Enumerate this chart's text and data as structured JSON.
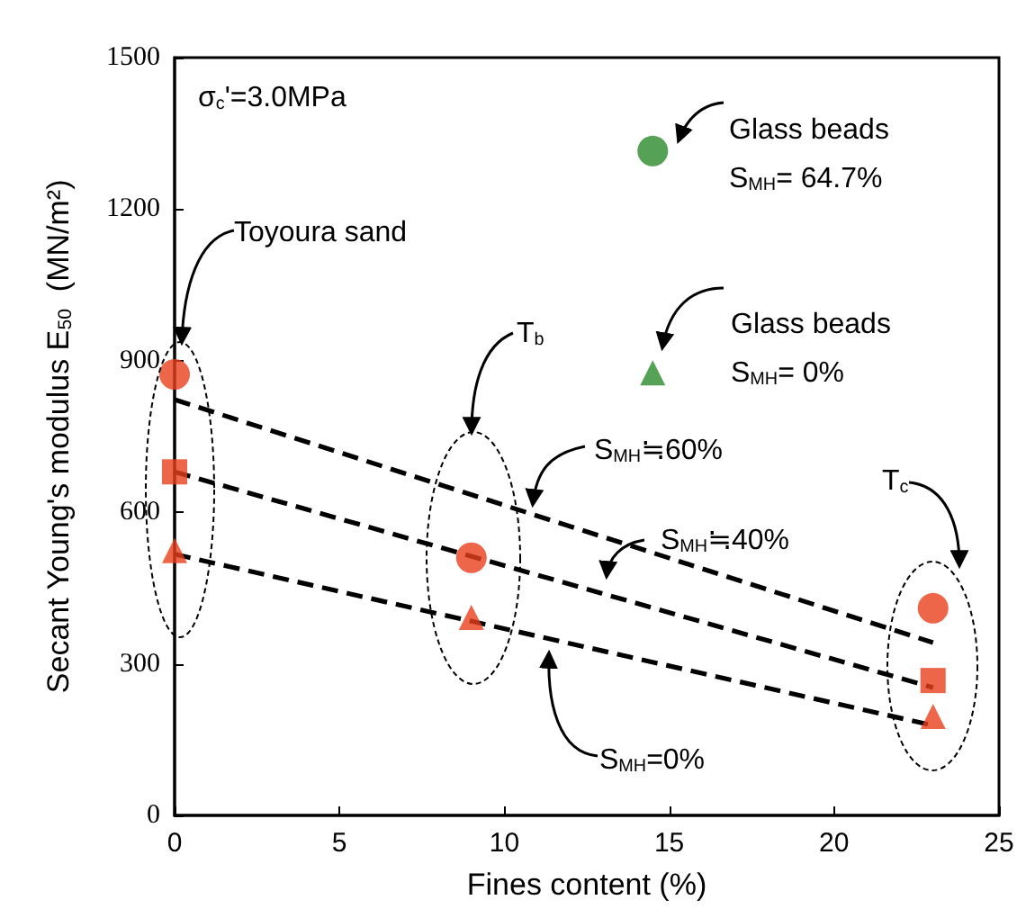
{
  "chart_data": {
    "type": "scatter",
    "xlabel": "Fines content (%)",
    "ylabel": "Secant Young's modulus E$_{50}$  (MN/m²)",
    "xlim": [
      0,
      25
    ],
    "xticks": [
      0,
      5,
      10,
      15,
      20,
      25
    ],
    "ylim": [
      0,
      1500
    ],
    "yticks": [
      0,
      300,
      600,
      900,
      1200,
      1500
    ],
    "grid": false,
    "series": [
      {
        "color": "#e8401c",
        "marker": "circle",
        "x": [
          0,
          9,
          23
        ],
        "values": [
          873,
          510,
          410
        ]
      },
      {
        "color": "#e8401c",
        "marker": "square",
        "x": [
          0,
          23
        ],
        "values": [
          680,
          267
        ]
      },
      {
        "color": "#e8401c",
        "marker": "triangle",
        "x": [
          0,
          9,
          23
        ],
        "values": [
          524,
          392,
          196
        ]
      },
      {
        "color": "#2a8a2a",
        "marker": "circle",
        "x": [
          14.5
        ],
        "values": [
          1315
        ]
      },
      {
        "color": "#2a8a2a",
        "marker": "triangle",
        "x": [
          14.5
        ],
        "values": [
          876
        ]
      },
      {
        "type": "line",
        "color": "#000000",
        "marker": "none",
        "line_style": "dashed",
        "x": [
          0,
          23
        ],
        "values": [
          823,
          342
        ]
      },
      {
        "type": "line",
        "color": "#000000",
        "marker": "none",
        "line_style": "dashed",
        "x": [
          0,
          23
        ],
        "values": [
          680,
          253
        ]
      },
      {
        "type": "line",
        "color": "#000000",
        "marker": "none",
        "line_style": "dashed",
        "x": [
          0,
          23
        ],
        "values": [
          517,
          178
        ]
      }
    ],
    "annotations": [
      "σ$_{c}$'=3.0MPa",
      "Glass beads\nS$_{MH}$= 64.7%",
      "Toyoura sand",
      "T$_{b}$",
      "Glass beads\nS$_{MH}$= 0%",
      "S$_{MH}$≒60%",
      "S$_{MH}$≒40%",
      "S$_{MH}$=0%",
      "T$_{c}$"
    ]
  }
}
